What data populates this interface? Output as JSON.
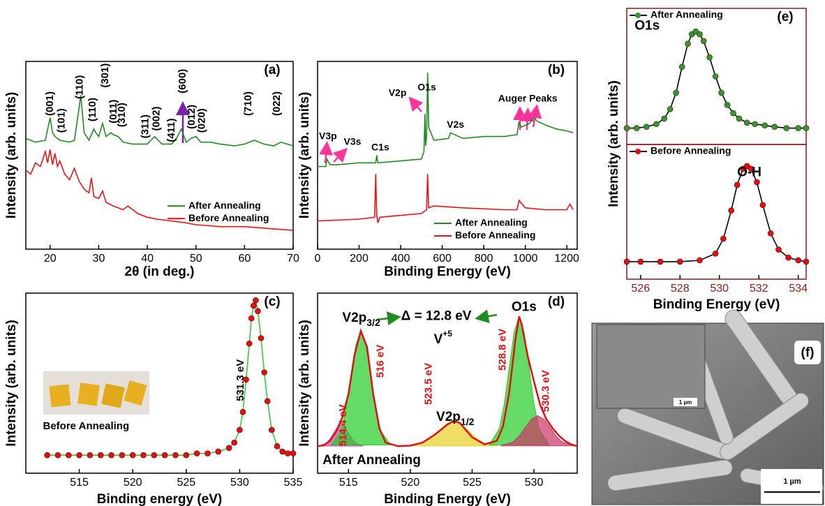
{
  "chart_data": [
    {
      "type": "line",
      "panel_label": "(a)",
      "x_label": "2θ (in deg.)",
      "y_label": "Intensity (arb. units)",
      "xlim": [
        15,
        70
      ],
      "xticks": [
        20,
        30,
        40,
        50,
        60,
        70
      ],
      "ylim": [
        0,
        100
      ],
      "legend": "center right",
      "series": [
        {
          "name": "After Annealing",
          "color": "#1f8c1f",
          "x": [
            15,
            17,
            19,
            20,
            20.5,
            21,
            22,
            24,
            25,
            26,
            26.3,
            27,
            28,
            29,
            29.4,
            30,
            30.8,
            31.5,
            32.5,
            33,
            34,
            35,
            37,
            40,
            41.5,
            43,
            45,
            46,
            47,
            48,
            49,
            50,
            51,
            53,
            55,
            58,
            60,
            62,
            64,
            66,
            67.5,
            70
          ],
          "values": [
            59,
            57,
            58,
            70,
            62,
            60,
            58,
            57,
            58,
            76,
            82,
            62,
            58,
            64,
            62,
            60,
            67,
            60,
            62,
            61,
            60,
            57,
            56,
            56,
            60,
            56,
            56,
            59,
            64,
            57,
            59,
            60,
            57,
            57,
            56,
            55,
            56,
            58,
            56,
            55,
            57,
            55
          ]
        },
        {
          "name": "Before Annealing",
          "color": "#ee1111",
          "x": [
            15,
            16,
            17,
            18,
            19,
            19.5,
            20,
            20.5,
            21,
            21.5,
            22,
            23,
            24,
            25,
            26,
            27,
            28,
            28.5,
            29,
            30,
            30.8,
            31.5,
            33,
            35,
            36,
            38,
            40,
            42,
            45,
            48,
            50,
            55,
            60,
            65,
            70
          ],
          "values": [
            42,
            40,
            46,
            44,
            52,
            46,
            53,
            45,
            51,
            44,
            47,
            40,
            37,
            43,
            36,
            32,
            30,
            38,
            28,
            27,
            31,
            25,
            23,
            21,
            23,
            19,
            17,
            16,
            15,
            14,
            13,
            12,
            12,
            11,
            10
          ]
        }
      ],
      "annotations": [
        {
          "text": "(001)",
          "x": 20.0,
          "y": 71,
          "orientation": "vertical"
        },
        {
          "text": "(101)",
          "x": 22.4,
          "y": 62,
          "orientation": "vertical"
        },
        {
          "text": "(110)",
          "x": 26.1,
          "y": 80,
          "orientation": "vertical"
        },
        {
          "text": "(110)",
          "x": 28.8,
          "y": 68,
          "orientation": "vertical"
        },
        {
          "text": "(301)",
          "x": 31.4,
          "y": 86,
          "orientation": "vertical"
        },
        {
          "text": "(011)",
          "x": 33.1,
          "y": 67,
          "orientation": "vertical"
        },
        {
          "text": "(310)",
          "x": 34.8,
          "y": 65,
          "orientation": "vertical"
        },
        {
          "text": "(311)",
          "x": 39.6,
          "y": 59,
          "orientation": "vertical"
        },
        {
          "text": "(002)",
          "x": 41.9,
          "y": 63,
          "orientation": "vertical"
        },
        {
          "text": "(411)",
          "x": 45.0,
          "y": 57,
          "orientation": "vertical"
        },
        {
          "text": "(600)",
          "x": 47.3,
          "y": 83,
          "orientation": "vertical"
        },
        {
          "text": "(012)",
          "x": 49.2,
          "y": 64,
          "orientation": "vertical"
        },
        {
          "text": "(020)",
          "x": 51.3,
          "y": 62,
          "orientation": "vertical"
        },
        {
          "text": "(710)",
          "x": 60.8,
          "y": 71,
          "orientation": "vertical"
        },
        {
          "text": "(022)",
          "x": 66.7,
          "y": 71,
          "orientation": "vertical"
        }
      ]
    },
    {
      "type": "line",
      "panel_label": "(b)",
      "x_label": "Binding Energy (eV)",
      "y_label": "Intensity (arb. units)",
      "xlim": [
        0,
        1250
      ],
      "xticks": [
        0,
        200,
        400,
        600,
        800,
        1000,
        1200
      ],
      "ylim": [
        0,
        100
      ],
      "legend": "lower right",
      "series": [
        {
          "name": "After Annealing",
          "color": "#1f8c1f",
          "x": [
            0,
            40,
            45,
            60,
            100,
            200,
            280,
            285,
            290,
            400,
            500,
            512,
            517,
            520,
            525,
            530,
            535,
            560,
            630,
            640,
            700,
            800,
            900,
            960,
            970,
            980,
            1000,
            1020,
            1040,
            1060,
            1100,
            1150,
            1200,
            1230
          ],
          "values": [
            44,
            44,
            48,
            45,
            45,
            46,
            46,
            50,
            46,
            47,
            48,
            52,
            72,
            55,
            60,
            94,
            65,
            58,
            59,
            62,
            59,
            60,
            60,
            61,
            68,
            65,
            66,
            67,
            70,
            68,
            66,
            64,
            63,
            62
          ]
        },
        {
          "name": "Before Annealing",
          "color": "#ee1111",
          "x": [
            0,
            200,
            275,
            280,
            285,
            290,
            300,
            400,
            500,
            525,
            530,
            535,
            560,
            700,
            900,
            960,
            970,
            1000,
            1100,
            1200,
            1215,
            1230
          ],
          "values": [
            15,
            16,
            17,
            40,
            18,
            14,
            17,
            18,
            19,
            21,
            40,
            22,
            23,
            22,
            21,
            21,
            26,
            22,
            21,
            21,
            24,
            21
          ]
        }
      ],
      "annotations": [
        {
          "text": "V3p",
          "x": 50,
          "y": 60
        },
        {
          "text": "V3s",
          "x": 168,
          "y": 57
        },
        {
          "text": "C1s",
          "x": 302,
          "y": 54
        },
        {
          "text": "V2p",
          "x": 385,
          "y": 83
        },
        {
          "text": "O1s",
          "x": 526,
          "y": 86
        },
        {
          "text": "V2s",
          "x": 664,
          "y": 66
        },
        {
          "text": "Auger Peaks",
          "x": 1012,
          "y": 80
        }
      ]
    },
    {
      "type": "line",
      "panel_label": "(c)",
      "x_label": "Binding energy (eV)",
      "y_label": "Intensity (arb. units)",
      "xlim": [
        510,
        535
      ],
      "xticks": [
        515,
        520,
        525,
        530,
        535
      ],
      "ylim": [
        0,
        100
      ],
      "series": [
        {
          "color": "#e01010",
          "line_color": "#33cc33",
          "marker": true,
          "x": [
            512,
            513,
            514,
            515,
            516,
            517,
            518,
            519,
            520,
            521,
            522,
            523,
            524,
            525,
            526,
            527,
            528,
            529,
            529.5,
            530,
            530.3,
            530.6,
            530.9,
            531.1,
            531.3,
            531.5,
            531.7,
            532,
            532.3,
            532.6,
            533,
            533.5,
            534,
            534.5,
            535
          ],
          "values": [
            10,
            10,
            10,
            10,
            10,
            10,
            10,
            10,
            10,
            10,
            10,
            10,
            10,
            10,
            11,
            11,
            12,
            14,
            17,
            24,
            34,
            52,
            72,
            86,
            93,
            96,
            90,
            75,
            56,
            40,
            24,
            15,
            12,
            11,
            11
          ]
        }
      ],
      "annotations": [
        {
          "text": "531.3 eV",
          "x": 530.1,
          "y": 40,
          "orientation": "vertical"
        },
        {
          "text": "Before Annealing",
          "x": 511.6,
          "y": 26
        }
      ]
    },
    {
      "type": "area",
      "panel_label": "(d)",
      "x_label": "Binding Energy (eV)",
      "y_label": "Intensity (arb. units)",
      "xlim": [
        512.5,
        533.5
      ],
      "xticks": [
        515,
        520,
        525,
        530
      ],
      "ylim": [
        0,
        100
      ],
      "series": [
        {
          "color": "#cc44aa",
          "x": [
            512.6,
            513.2,
            513.5,
            513.8,
            514.1,
            514.4,
            514.7,
            515.0,
            515.3,
            515.6,
            516.2
          ],
          "values": [
            15.1,
            16.6,
            18.9,
            22.3,
            25.6,
            27,
            25.6,
            22.3,
            18.9,
            16.6,
            15.1
          ]
        },
        {
          "color": "#22cc22",
          "x": [
            513.6,
            514.4,
            514.8,
            515.2,
            515.6,
            516,
            516.4,
            516.8,
            517.2,
            517.6,
            518.4
          ],
          "values": [
            15.7,
            23.6,
            35.8,
            53.8,
            71.4,
            79,
            71.4,
            53.8,
            35.8,
            23.6,
            15.7
          ]
        },
        {
          "color": "#e8d020",
          "x": [
            519.9,
            521.1,
            521.7,
            522.3,
            522.9,
            523.5,
            524.1,
            524.7,
            525.3,
            525.9,
            527.1
          ],
          "values": [
            15.2,
            16.9,
            19.6,
            23.5,
            27.3,
            29,
            27.3,
            23.5,
            19.6,
            16.9,
            15.2
          ]
        },
        {
          "color": "#22cc22",
          "x": [
            526.4,
            527.2,
            527.6,
            528,
            528.4,
            528.8,
            529.2,
            529.6,
            530,
            530.4,
            531.2
          ],
          "values": [
            15.8,
            24.7,
            38.4,
            58.7,
            78.5,
            87,
            78.5,
            58.7,
            38.4,
            24.7,
            15.8
          ]
        },
        {
          "color": "#cc3366",
          "x": [
            527.3,
            528.3,
            528.8,
            529.3,
            529.8,
            530.3,
            530.8,
            531.3,
            531.8,
            532.3,
            533.3
          ],
          "values": [
            15.2,
            17.3,
            20.5,
            25.3,
            30,
            32,
            30,
            25.3,
            20.5,
            17.3,
            15.2
          ]
        },
        {
          "color": "#e01010",
          "line_only": true,
          "x": [
            512.5,
            513,
            513.5,
            514,
            514.5,
            515,
            515.5,
            516,
            516.5,
            517,
            517.5,
            518,
            519,
            520,
            521,
            522,
            523,
            523.5,
            524,
            525,
            526,
            527,
            527.5,
            528,
            528.5,
            528.8,
            529,
            529.5,
            530,
            530.5,
            531,
            531.5,
            532,
            532.5,
            533,
            533.5
          ],
          "values": [
            15,
            15.5,
            18,
            23,
            31,
            44,
            66,
            79,
            70,
            44,
            25,
            17,
            15,
            15.3,
            17,
            21.5,
            27,
            29,
            28,
            20,
            16,
            18,
            26,
            45,
            74,
            87,
            83,
            65,
            51,
            38,
            30,
            25,
            21,
            18,
            16,
            15
          ]
        }
      ],
      "annotations": [
        {
          "text": "V2p",
          "sub": "3/2",
          "x": 514.5,
          "y": 86
        },
        {
          "text": "Δ = 12.8 eV",
          "x": 522.1,
          "y": 87
        },
        {
          "text": "V",
          "sup": "+5",
          "x": 521.9,
          "y": 74
        },
        {
          "text": "O1s",
          "x": 529.2,
          "y": 92
        },
        {
          "text": "V2p",
          "sub": "1/2",
          "x": 522.1,
          "y": 31
        },
        {
          "text": "514.4 eV",
          "x": 514.6,
          "y": 15,
          "orientation": "vertical",
          "color": "#e01010"
        },
        {
          "text": "516 eV",
          "x": 517.6,
          "y": 53,
          "orientation": "vertical",
          "color": "#e01010"
        },
        {
          "text": "523.5 eV",
          "x": 521.5,
          "y": 38,
          "orientation": "vertical",
          "color": "#e01010"
        },
        {
          "text": "528.8 eV",
          "x": 527.5,
          "y": 57,
          "orientation": "vertical",
          "color": "#e01010"
        },
        {
          "text": "530.3 eV",
          "x": 531.0,
          "y": 34,
          "orientation": "vertical",
          "color": "#e01010"
        },
        {
          "text": "After Annealing",
          "x": 512.9,
          "y": 7
        }
      ]
    },
    {
      "type": "line",
      "panel_label": "(e)",
      "y_label": "Intensity (arb. units)",
      "xlim": [
        525.3,
        534.4
      ],
      "ylim": [
        0,
        100
      ],
      "legend": "upper left",
      "tick_color": "#8b1a1a",
      "series": [
        {
          "name": "After Annealing",
          "color": "#2e9b2e",
          "line_color": "#000000",
          "marker": true,
          "x": [
            525.3,
            525.8,
            526.3,
            526.8,
            527.2,
            527.5,
            527.8,
            528.1,
            528.4,
            528.6,
            528.8,
            529,
            529.2,
            529.5,
            529.8,
            530.1,
            530.4,
            530.7,
            531,
            531.4,
            531.8,
            532.3,
            532.8,
            533.4,
            534,
            534.4
          ],
          "values": [
            12,
            12,
            13,
            15,
            19,
            26,
            38,
            57,
            74,
            81,
            83,
            81,
            76,
            64,
            50,
            38,
            29,
            23,
            19,
            16,
            15,
            14,
            13,
            12,
            12,
            12
          ]
        }
      ],
      "annotations": [
        {
          "text": "O1s",
          "x": 525.7,
          "y": 87
        }
      ]
    },
    {
      "type": "line",
      "x_label": "Binding Energy (eV)",
      "xlim": [
        525.3,
        534.4
      ],
      "xticks": [
        526,
        528,
        530,
        532,
        534
      ],
      "ylim": [
        0,
        100
      ],
      "legend": "upper left",
      "tick_color": "#8b1a1a",
      "series": [
        {
          "name": "Before Annealing",
          "color": "#e01010",
          "line_color": "#000000",
          "marker": true,
          "x": [
            525.3,
            526,
            527,
            528,
            529,
            529.8,
            530.2,
            530.6,
            530.9,
            531.2,
            531.4,
            531.6,
            531.9,
            532.2,
            532.6,
            533,
            533.5,
            534,
            534.4
          ],
          "values": [
            13,
            13,
            13,
            13,
            14,
            19,
            30,
            51,
            70,
            82,
            84,
            82,
            72,
            55,
            34,
            22,
            16,
            14,
            13
          ]
        }
      ],
      "annotations": [
        {
          "text": "O-H",
          "x": 530.9,
          "y": 79
        }
      ]
    }
  ],
  "image": {
    "panel_label": "(f)",
    "inset_scale_label": "1 µm",
    "scale_label": "1 µm"
  }
}
